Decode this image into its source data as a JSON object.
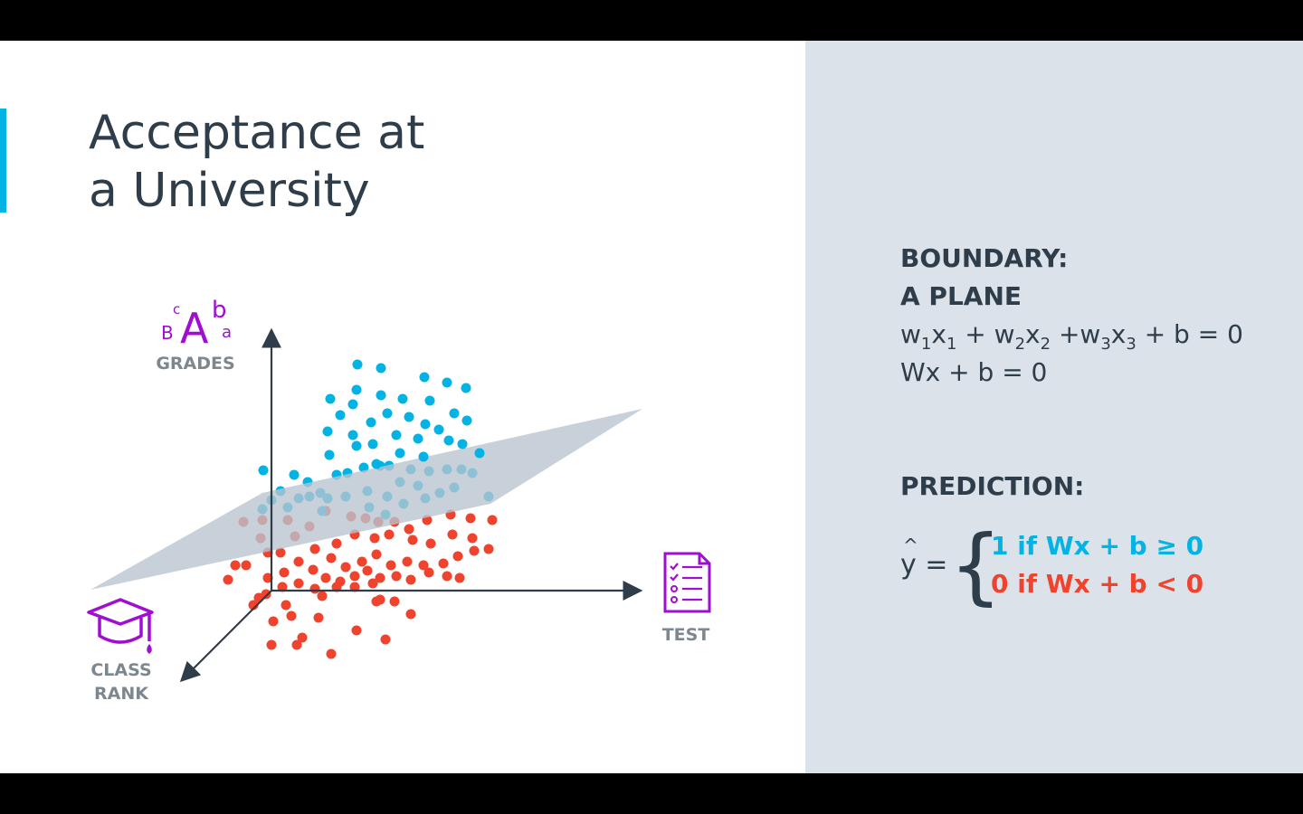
{
  "title": {
    "line1": "Acceptance at",
    "line2": "a University"
  },
  "colors": {
    "accent": "#02b3e4",
    "positive": "#02b3e4",
    "negative": "#f0432d",
    "icon": "#a00ed1",
    "plane": "#b8c4d0",
    "text": "#2e3d49"
  },
  "axes": {
    "grades": {
      "label": "GRADES",
      "icon": "grades-letters-icon",
      "glyphs": {
        "big": "A",
        "sup1": "c",
        "sub1": "B",
        "sup2": "b",
        "sub2": "a"
      }
    },
    "test": {
      "label": "TEST",
      "icon": "test-clipboard-icon"
    },
    "class_rank": {
      "label_line1": "CLASS",
      "label_line2": "RANK",
      "icon": "graduation-cap-icon"
    }
  },
  "boundary": {
    "heading1": "BOUNDARY:",
    "heading2": "A PLANE",
    "eq1": {
      "w1": "w",
      "s1": "1",
      "x1": "x",
      "s2": "1",
      "plus1": " + w",
      "s3": "2",
      "x2": "x",
      "s4": "2",
      "plus2": " +w",
      "s5": "3",
      "x3": "x",
      "s6": "3",
      "tail": " + b = 0"
    },
    "eq2": "Wx + b = 0"
  },
  "prediction": {
    "heading": "PREDICTION:",
    "lhs": "y",
    "equals": " =",
    "brace": "{",
    "case1": "1 if Wx + b ≥ 0",
    "case0": "0 if Wx + b < 0"
  }
}
